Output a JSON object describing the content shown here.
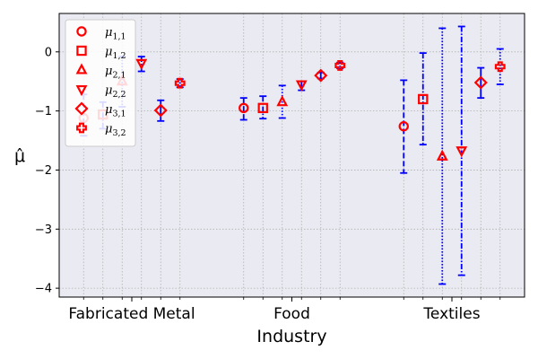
{
  "chart_data": {
    "type": "scatter",
    "xlabel": "Industry",
    "ylabel": "μ̂",
    "ylim": [
      -4.15,
      0.65
    ],
    "yticks": [
      0,
      -1,
      -2,
      -3,
      -4
    ],
    "ytick_labels": [
      "0",
      "−1",
      "−2",
      "−3",
      "−4"
    ],
    "categories": [
      "Fabricated Metal",
      "Food",
      "Textiles"
    ],
    "grid": true,
    "legend_position": "top-left",
    "marker_color": "#ff0000",
    "errorbar_color": "#0000ff",
    "background_color": "#eaeaf2",
    "series": [
      {
        "legend_base": "μ",
        "legend_sub": "1,1",
        "marker": "circle",
        "errstyle": "dashed",
        "points": [
          {
            "y": -1.12,
            "low": -1.42,
            "high": -0.72
          },
          {
            "y": -0.95,
            "low": -1.15,
            "high": -0.78
          },
          {
            "y": -1.26,
            "low": -2.05,
            "high": -0.48
          }
        ]
      },
      {
        "legend_base": "μ",
        "legend_sub": "1,2",
        "marker": "square",
        "errstyle": "dashdot",
        "points": [
          {
            "y": -1.06,
            "low": -1.3,
            "high": -0.85
          },
          {
            "y": -0.95,
            "low": -1.13,
            "high": -0.75
          },
          {
            "y": -0.8,
            "low": -1.57,
            "high": -0.02
          }
        ]
      },
      {
        "legend_base": "μ",
        "legend_sub": "2,1",
        "marker": "triangle-up",
        "errstyle": "dotted",
        "points": [
          {
            "y": -0.5,
            "low": -0.93,
            "high": -0.08
          },
          {
            "y": -0.85,
            "low": -1.12,
            "high": -0.57
          },
          {
            "y": -1.77,
            "low": -3.93,
            "high": 0.4
          }
        ]
      },
      {
        "legend_base": "μ",
        "legend_sub": "2,2",
        "marker": "triangle-down",
        "errstyle": "dashdot",
        "points": [
          {
            "y": -0.19,
            "low": -0.33,
            "high": -0.08
          },
          {
            "y": -0.55,
            "low": -0.65,
            "high": -0.5
          },
          {
            "y": -1.67,
            "low": -3.78,
            "high": 0.43
          }
        ]
      },
      {
        "legend_base": "μ",
        "legend_sub": "3,1",
        "marker": "diamond",
        "errstyle": "solid",
        "points": [
          {
            "y": -0.99,
            "low": -1.17,
            "high": -0.82
          },
          {
            "y": -0.4,
            "low": -0.45,
            "high": -0.35
          },
          {
            "y": -0.52,
            "low": -0.78,
            "high": -0.27
          }
        ]
      },
      {
        "legend_base": "μ",
        "legend_sub": "3,2",
        "marker": "plus",
        "errstyle": "dotted",
        "points": [
          {
            "y": -0.53,
            "low": -0.6,
            "high": -0.46
          },
          {
            "y": -0.23,
            "low": -0.28,
            "high": -0.18
          },
          {
            "y": -0.25,
            "low": -0.55,
            "high": 0.05
          }
        ]
      }
    ]
  }
}
